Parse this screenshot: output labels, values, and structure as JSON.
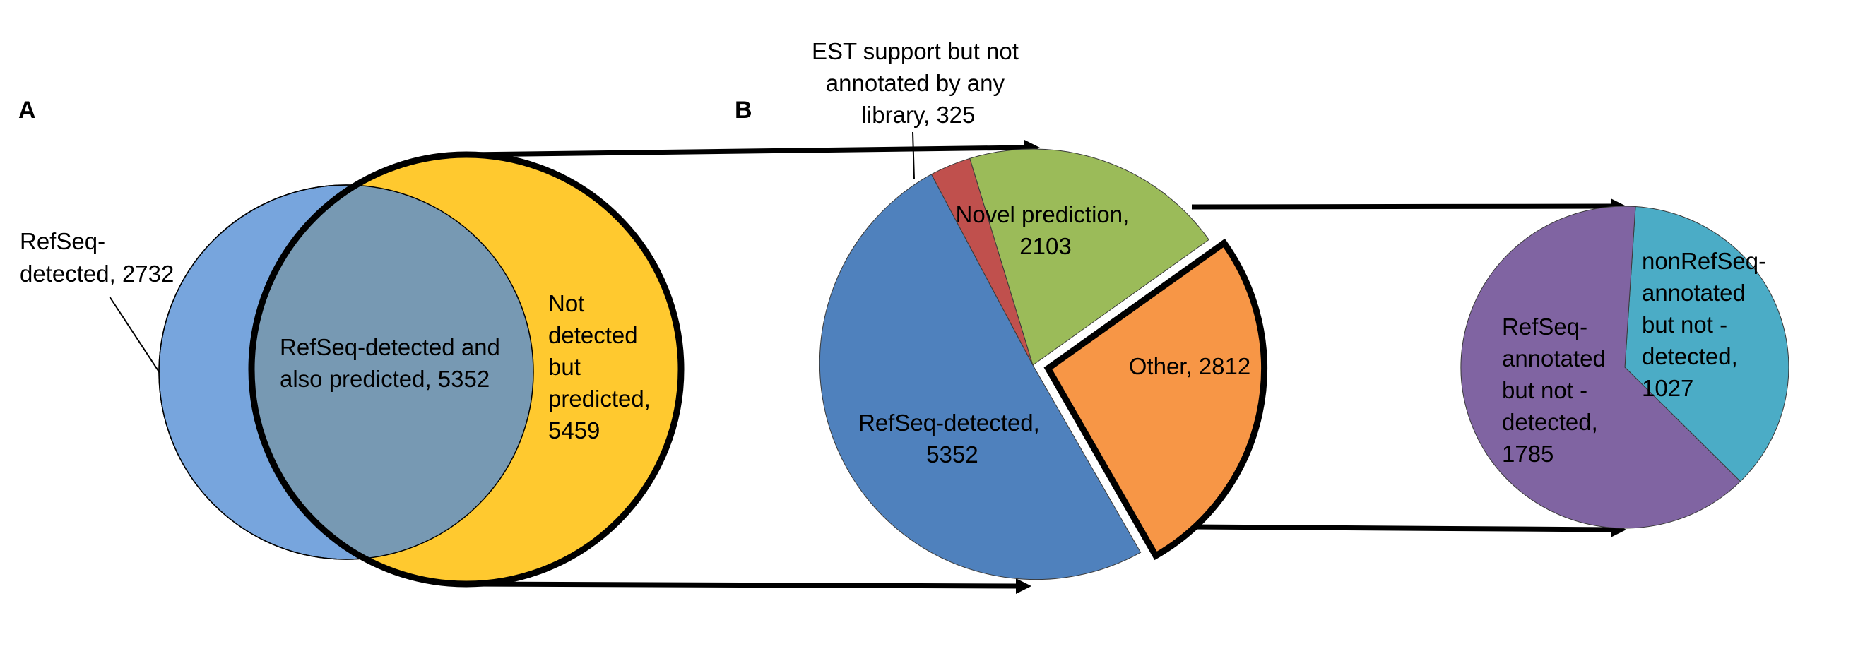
{
  "panels": {
    "a": "A",
    "b": "B"
  },
  "chart_data": [
    {
      "type": "venn",
      "panel": "A",
      "sets": [
        {
          "id": "refseq",
          "label": "RefSeq-detected",
          "color": "#77A5DD"
        },
        {
          "id": "predicted",
          "label": "predicted",
          "color": "#FFC92F"
        }
      ],
      "regions": [
        {
          "id": "refseq_only",
          "label_lines": [
            "RefSeq-",
            "detected, 2732"
          ],
          "value": 2732
        },
        {
          "id": "both",
          "label_lines": [
            "RefSeq-detected and",
            "also predicted, 5352"
          ],
          "value": 5352,
          "color": "#7799B3"
        },
        {
          "id": "predicted_only",
          "label_lines": [
            "Not",
            "detected",
            "but",
            "predicted,",
            "5459"
          ],
          "value": 5459
        }
      ]
    },
    {
      "type": "pie",
      "panel": "B",
      "slices": [
        {
          "id": "est",
          "label_lines": [
            "EST support but not",
            "annotated by any",
            "library, 325"
          ],
          "value": 325,
          "color": "#C0504D"
        },
        {
          "id": "novel",
          "label_lines": [
            "Novel prediction,",
            "2103"
          ],
          "value": 2103,
          "color": "#9BBB59"
        },
        {
          "id": "other",
          "label_lines": [
            "Other, 2812"
          ],
          "value": 2812,
          "color": "#F79646",
          "exploded": true
        },
        {
          "id": "refseq",
          "label_lines": [
            "RefSeq-detected,",
            "5352"
          ],
          "value": 5352,
          "color": "#4F81BD"
        }
      ]
    },
    {
      "type": "pie",
      "panel": "B-breakdown",
      "breakdown_of": "Other",
      "slices": [
        {
          "id": "nonrefseq",
          "label_lines": [
            "nonRefSeq-",
            "annotated",
            "but not -",
            "detected,",
            "1027"
          ],
          "value": 1027,
          "color": "#4BACC6"
        },
        {
          "id": "refseq_annot",
          "label_lines": [
            "RefSeq-",
            "annotated",
            "but not -",
            "detected,",
            "1785"
          ],
          "value": 1785,
          "color": "#8064A2"
        }
      ]
    }
  ]
}
